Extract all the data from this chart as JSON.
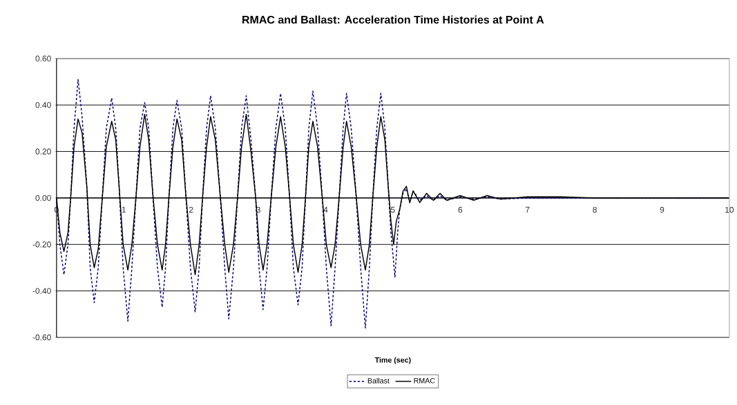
{
  "chart_data": {
    "type": "line",
    "title": "RMAC and Ballast: Acceleration Time Histories at Point A",
    "xlabel": "Time (sec)",
    "xlim": [
      0,
      10
    ],
    "xticks": [
      0,
      1,
      2,
      3,
      4,
      5,
      6,
      7,
      8,
      9,
      10
    ],
    "ylim": [
      -0.6,
      0.6
    ],
    "yticks": [
      {
        "value": -0.6,
        "label": "-0.60"
      },
      {
        "value": -0.4,
        "label": "-0.40"
      },
      {
        "value": -0.2,
        "label": "-0.20"
      },
      {
        "value": 0,
        "label": "0.00"
      },
      {
        "value": 0.2,
        "label": "0.20"
      },
      {
        "value": 0.4,
        "label": "0.40"
      },
      {
        "value": 0.6,
        "label": "0.60"
      }
    ],
    "grid": "y",
    "legend": "bottom",
    "series": [
      {
        "name": "Ballast",
        "color": "#000080",
        "line_style": "dashed",
        "x": [
          0,
          0.05,
          0.11,
          0.17,
          0.21,
          0.26,
          0.32,
          0.38,
          0.45,
          0.5,
          0.56,
          0.62,
          0.68,
          0.74,
          0.82,
          0.88,
          0.93,
          0.99,
          1.06,
          1.12,
          1.18,
          1.24,
          1.31,
          1.37,
          1.43,
          1.5,
          1.57,
          1.62,
          1.67,
          1.73,
          1.79,
          1.86,
          1.92,
          1.99,
          2.06,
          2.12,
          2.17,
          2.23,
          2.29,
          2.36,
          2.43,
          2.5,
          2.56,
          2.63,
          2.69,
          2.75,
          2.82,
          2.89,
          2.96,
          3.01,
          3.07,
          3.13,
          3.19,
          3.26,
          3.33,
          3.4,
          3.46,
          3.52,
          3.59,
          3.65,
          3.7,
          3.75,
          3.81,
          3.88,
          3.95,
          4.01,
          4.08,
          4.14,
          4.2,
          4.26,
          4.31,
          4.38,
          4.45,
          4.52,
          4.59,
          4.65,
          4.7,
          4.76,
          4.82,
          4.88,
          4.93,
          4.97,
          5.03,
          5.07,
          5.1,
          5.15,
          5.2,
          5.25,
          5.3,
          5.4,
          5.5,
          5.6,
          5.7,
          5.8,
          6.0,
          6.2,
          6.4,
          6.6,
          7.0,
          7.5,
          8.0,
          10
        ],
        "values": [
          0,
          -0.2,
          -0.33,
          -0.2,
          0,
          0.3,
          0.51,
          0.35,
          0.05,
          -0.3,
          -0.45,
          -0.3,
          0,
          0.3,
          0.43,
          0.3,
          0.05,
          -0.3,
          -0.53,
          -0.3,
          0,
          0.3,
          0.41,
          0.3,
          0.02,
          -0.3,
          -0.47,
          -0.3,
          0,
          0.3,
          0.42,
          0.3,
          0.02,
          -0.3,
          -0.49,
          -0.3,
          0,
          0.3,
          0.44,
          0.3,
          0.02,
          -0.3,
          -0.52,
          -0.3,
          0,
          0.3,
          0.44,
          0.25,
          0,
          -0.3,
          -0.48,
          -0.3,
          0,
          0.3,
          0.45,
          0.3,
          0.02,
          -0.3,
          -0.46,
          -0.3,
          0,
          0.3,
          0.46,
          0.3,
          0,
          -0.3,
          -0.55,
          -0.3,
          0,
          0.3,
          0.45,
          0.3,
          0.02,
          -0.3,
          -0.56,
          -0.3,
          0,
          0.3,
          0.45,
          0.3,
          0.05,
          -0.15,
          -0.34,
          -0.15,
          -0.05,
          0.02,
          0.04,
          -0.02,
          0.03,
          -0.01,
          0.01,
          -0.01,
          0.01,
          -0.01,
          0.005,
          -0.005,
          0.005,
          -0.005,
          0,
          0,
          0,
          0
        ]
      },
      {
        "name": "RMAC",
        "color": "#000000",
        "line_style": "solid",
        "x": [
          0,
          0.05,
          0.11,
          0.17,
          0.21,
          0.26,
          0.32,
          0.38,
          0.45,
          0.5,
          0.56,
          0.62,
          0.68,
          0.74,
          0.82,
          0.88,
          0.93,
          0.99,
          1.06,
          1.12,
          1.18,
          1.24,
          1.31,
          1.37,
          1.43,
          1.5,
          1.57,
          1.62,
          1.67,
          1.73,
          1.79,
          1.86,
          1.92,
          1.99,
          2.06,
          2.12,
          2.17,
          2.23,
          2.29,
          2.36,
          2.43,
          2.5,
          2.56,
          2.63,
          2.69,
          2.75,
          2.82,
          2.89,
          2.96,
          3.01,
          3.07,
          3.13,
          3.19,
          3.26,
          3.33,
          3.4,
          3.46,
          3.52,
          3.59,
          3.65,
          3.7,
          3.75,
          3.81,
          3.88,
          3.95,
          4.01,
          4.08,
          4.14,
          4.2,
          4.26,
          4.31,
          4.38,
          4.45,
          4.52,
          4.59,
          4.65,
          4.7,
          4.76,
          4.82,
          4.88,
          4.93,
          4.97,
          5.01,
          5.05,
          5.1,
          5.15,
          5.2,
          5.25,
          5.3,
          5.4,
          5.5,
          5.6,
          5.7,
          5.8,
          6.0,
          6.2,
          6.4,
          6.6,
          7.0,
          7.5,
          8.0,
          10
        ],
        "values": [
          0,
          -0.15,
          -0.23,
          -0.15,
          0,
          0.22,
          0.34,
          0.28,
          0.05,
          -0.2,
          -0.3,
          -0.22,
          0,
          0.22,
          0.33,
          0.25,
          0.05,
          -0.2,
          -0.31,
          -0.2,
          0,
          0.22,
          0.36,
          0.25,
          0.02,
          -0.2,
          -0.31,
          -0.2,
          0,
          0.22,
          0.34,
          0.25,
          0.02,
          -0.2,
          -0.33,
          -0.2,
          0,
          0.22,
          0.35,
          0.25,
          0.02,
          -0.2,
          -0.32,
          -0.2,
          0,
          0.22,
          0.36,
          0.2,
          0,
          -0.2,
          -0.31,
          -0.2,
          0,
          0.22,
          0.35,
          0.22,
          0.02,
          -0.2,
          -0.32,
          -0.2,
          0,
          0.22,
          0.33,
          0.22,
          0,
          -0.2,
          -0.3,
          -0.2,
          0,
          0.22,
          0.33,
          0.22,
          0.02,
          -0.2,
          -0.31,
          -0.2,
          0,
          0.22,
          0.35,
          0.25,
          0.05,
          -0.1,
          -0.2,
          -0.1,
          -0.05,
          0.03,
          0.05,
          -0.02,
          0.03,
          -0.02,
          0.02,
          -0.01,
          0.02,
          -0.01,
          0.01,
          -0.01,
          0.01,
          -0.005,
          0.005,
          0.005,
          0,
          0
        ]
      }
    ]
  }
}
